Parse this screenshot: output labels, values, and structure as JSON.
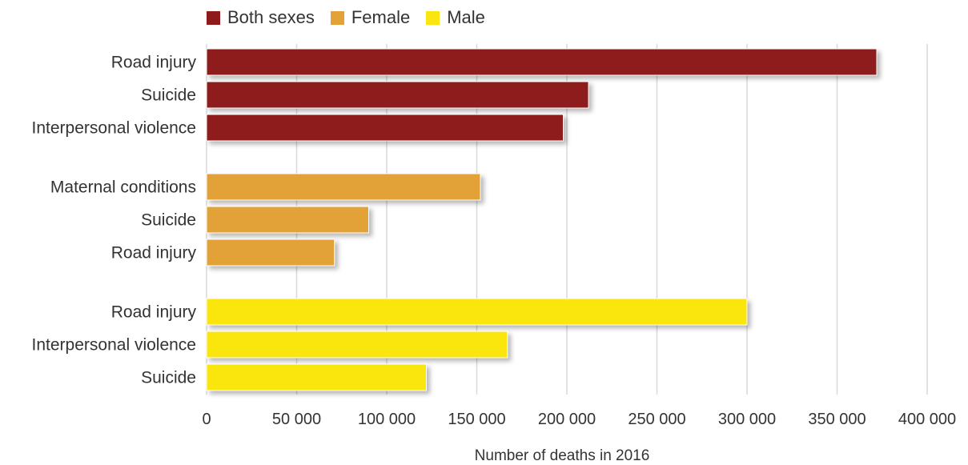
{
  "chart_data": {
    "type": "bar",
    "orientation": "horizontal",
    "xlabel": "Number of deaths in 2016",
    "xlim": [
      0,
      400000
    ],
    "xticks": [
      0,
      50000,
      100000,
      150000,
      200000,
      250000,
      300000,
      350000,
      400000
    ],
    "xtick_labels": [
      "0",
      "50 000",
      "100 000",
      "150 000",
      "200 000",
      "250 000",
      "300 000",
      "350 000",
      "400 000"
    ],
    "grid": "vertical",
    "legend_position": "top-left",
    "groups": [
      {
        "name": "Both sexes",
        "color": "#8f1a1c",
        "categories": [
          "Road injury",
          "Suicide",
          "Interpersonal violence"
        ],
        "values": [
          372000,
          212000,
          198000
        ]
      },
      {
        "name": "Female",
        "color": "#e3a238",
        "categories": [
          "Maternal conditions",
          "Suicide",
          "Road injury"
        ],
        "values": [
          152000,
          90000,
          71000
        ]
      },
      {
        "name": "Male",
        "color": "#fae511",
        "categories": [
          "Road injury",
          "Interpersonal violence",
          "Suicide"
        ],
        "values": [
          300000,
          167000,
          122000
        ]
      }
    ]
  }
}
